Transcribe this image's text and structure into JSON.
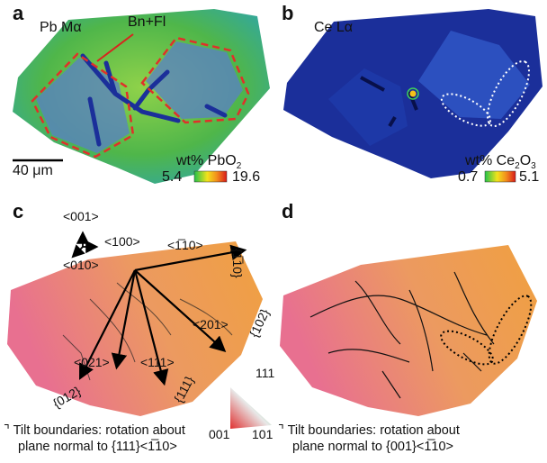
{
  "panel_a": {
    "letter": "a",
    "element_label": "Pb Mα",
    "callout": "Bn+Fl",
    "scale_bar": "40 μm",
    "colorbar_title": "wt% PbO",
    "colorbar_title_sub": "2",
    "cb_min": "5.4",
    "cb_max": "19.6"
  },
  "panel_b": {
    "letter": "b",
    "element_label": "Ce Lα",
    "colorbar_title": "wt% Ce",
    "colorbar_title_sub1": "2",
    "colorbar_title_mid": "O",
    "colorbar_title_sub2": "3",
    "cb_min": "0.7",
    "cb_max": "5.1"
  },
  "panel_c": {
    "letter": "c",
    "axis_001": "<001>",
    "axis_100": "<100>",
    "axis_010": "<010>",
    "dir_1m10": "<1̅10>",
    "dir_201": "<201>",
    "dir_111": "<111>",
    "dir_021": "<021>",
    "plane_1m10": "{1̅10}",
    "plane_102": "{102}",
    "plane_111": "{111}",
    "plane_012": "{012}",
    "caption_line1": "Tilt boundaries: rotation about",
    "caption_line2": "plane normal to {111}<1̅10>"
  },
  "ipf_key": {
    "top": "111",
    "left": "001",
    "right": "101"
  },
  "panel_d": {
    "letter": "d",
    "caption_line1": "Tilt boundaries: rotation about",
    "caption_line2": "plane normal to {001}<1̅10>"
  },
  "colors": {
    "map_blue": "#1b2f9a",
    "map_green": "#4fb64a",
    "map_orange": "#f0a040",
    "map_pink": "#e8728a",
    "boundary_red": "#e0302a"
  }
}
